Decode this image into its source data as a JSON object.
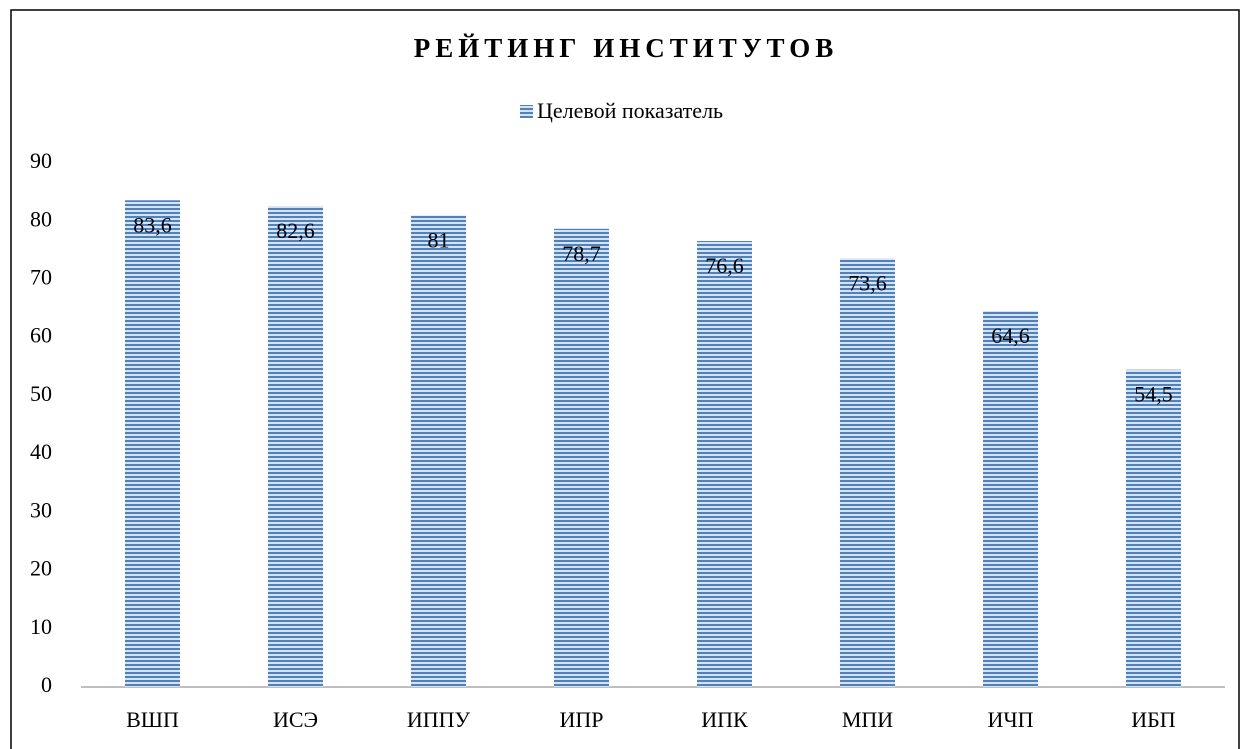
{
  "chart_data": {
    "type": "bar",
    "title": "РЕЙТИНГ ИНСТИТУТОВ",
    "categories": [
      "ВШП",
      "ИСЭ",
      "ИППУ",
      "ИПР",
      "ИПК",
      "МПИ",
      "ИЧП",
      "ИБП"
    ],
    "series": [
      {
        "name": "Целевой показатель",
        "color": "#4f81bd",
        "values": [
          83.6,
          82.6,
          81,
          78.7,
          76.6,
          73.6,
          64.6,
          54.5
        ],
        "value_labels": [
          "83,6",
          "82,6",
          "81",
          "78,7",
          "76,6",
          "73,6",
          "64,6",
          "54,5"
        ]
      }
    ],
    "ylim": [
      0,
      90
    ],
    "yticks": [
      0,
      10,
      20,
      30,
      40,
      50,
      60,
      70,
      80,
      90
    ],
    "grid": false,
    "legend": "top"
  }
}
